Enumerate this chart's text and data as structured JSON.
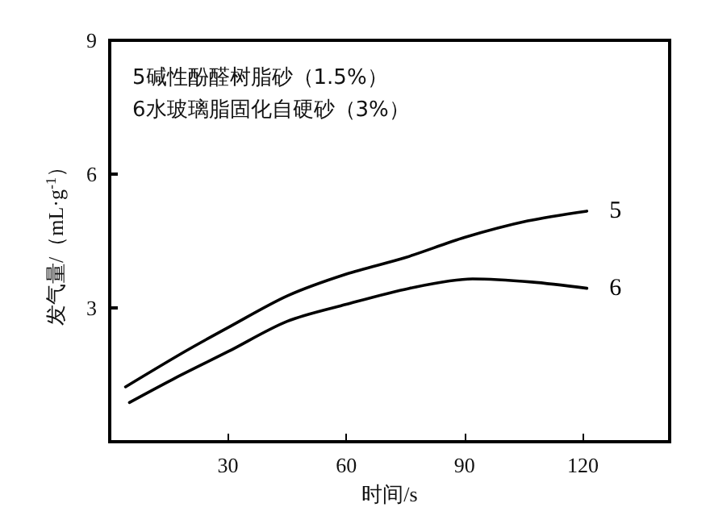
{
  "chart_data": {
    "type": "line",
    "xlabel": "时间/s",
    "ylabel": "发气量/（mL·g$^{-1}$）",
    "xlim": [
      0,
      142
    ],
    "ylim": [
      0,
      9
    ],
    "xticks": [
      30,
      60,
      90,
      120
    ],
    "yticks": [
      3,
      6,
      9
    ],
    "grid": false,
    "legend": false,
    "marker": "none",
    "line_style": "solid",
    "annotations": [
      "5碱性酚醛树脂砂（1.5%）",
      "6水玻璃脂固化自硬砂（3%）"
    ],
    "series": [
      {
        "name": "5",
        "color": "#000000",
        "x": [
          4,
          19,
          30,
          45,
          60,
          75,
          90,
          106,
          121
        ],
        "values": [
          1.23,
          2.02,
          2.56,
          3.27,
          3.76,
          4.13,
          4.58,
          4.95,
          5.17
        ]
      },
      {
        "name": "6",
        "color": "#000000",
        "x": [
          5,
          16,
          30,
          45,
          60,
          76,
          92,
          107,
          121
        ],
        "values": [
          0.88,
          1.4,
          2.02,
          2.7,
          3.08,
          3.44,
          3.65,
          3.58,
          3.44
        ]
      }
    ]
  }
}
